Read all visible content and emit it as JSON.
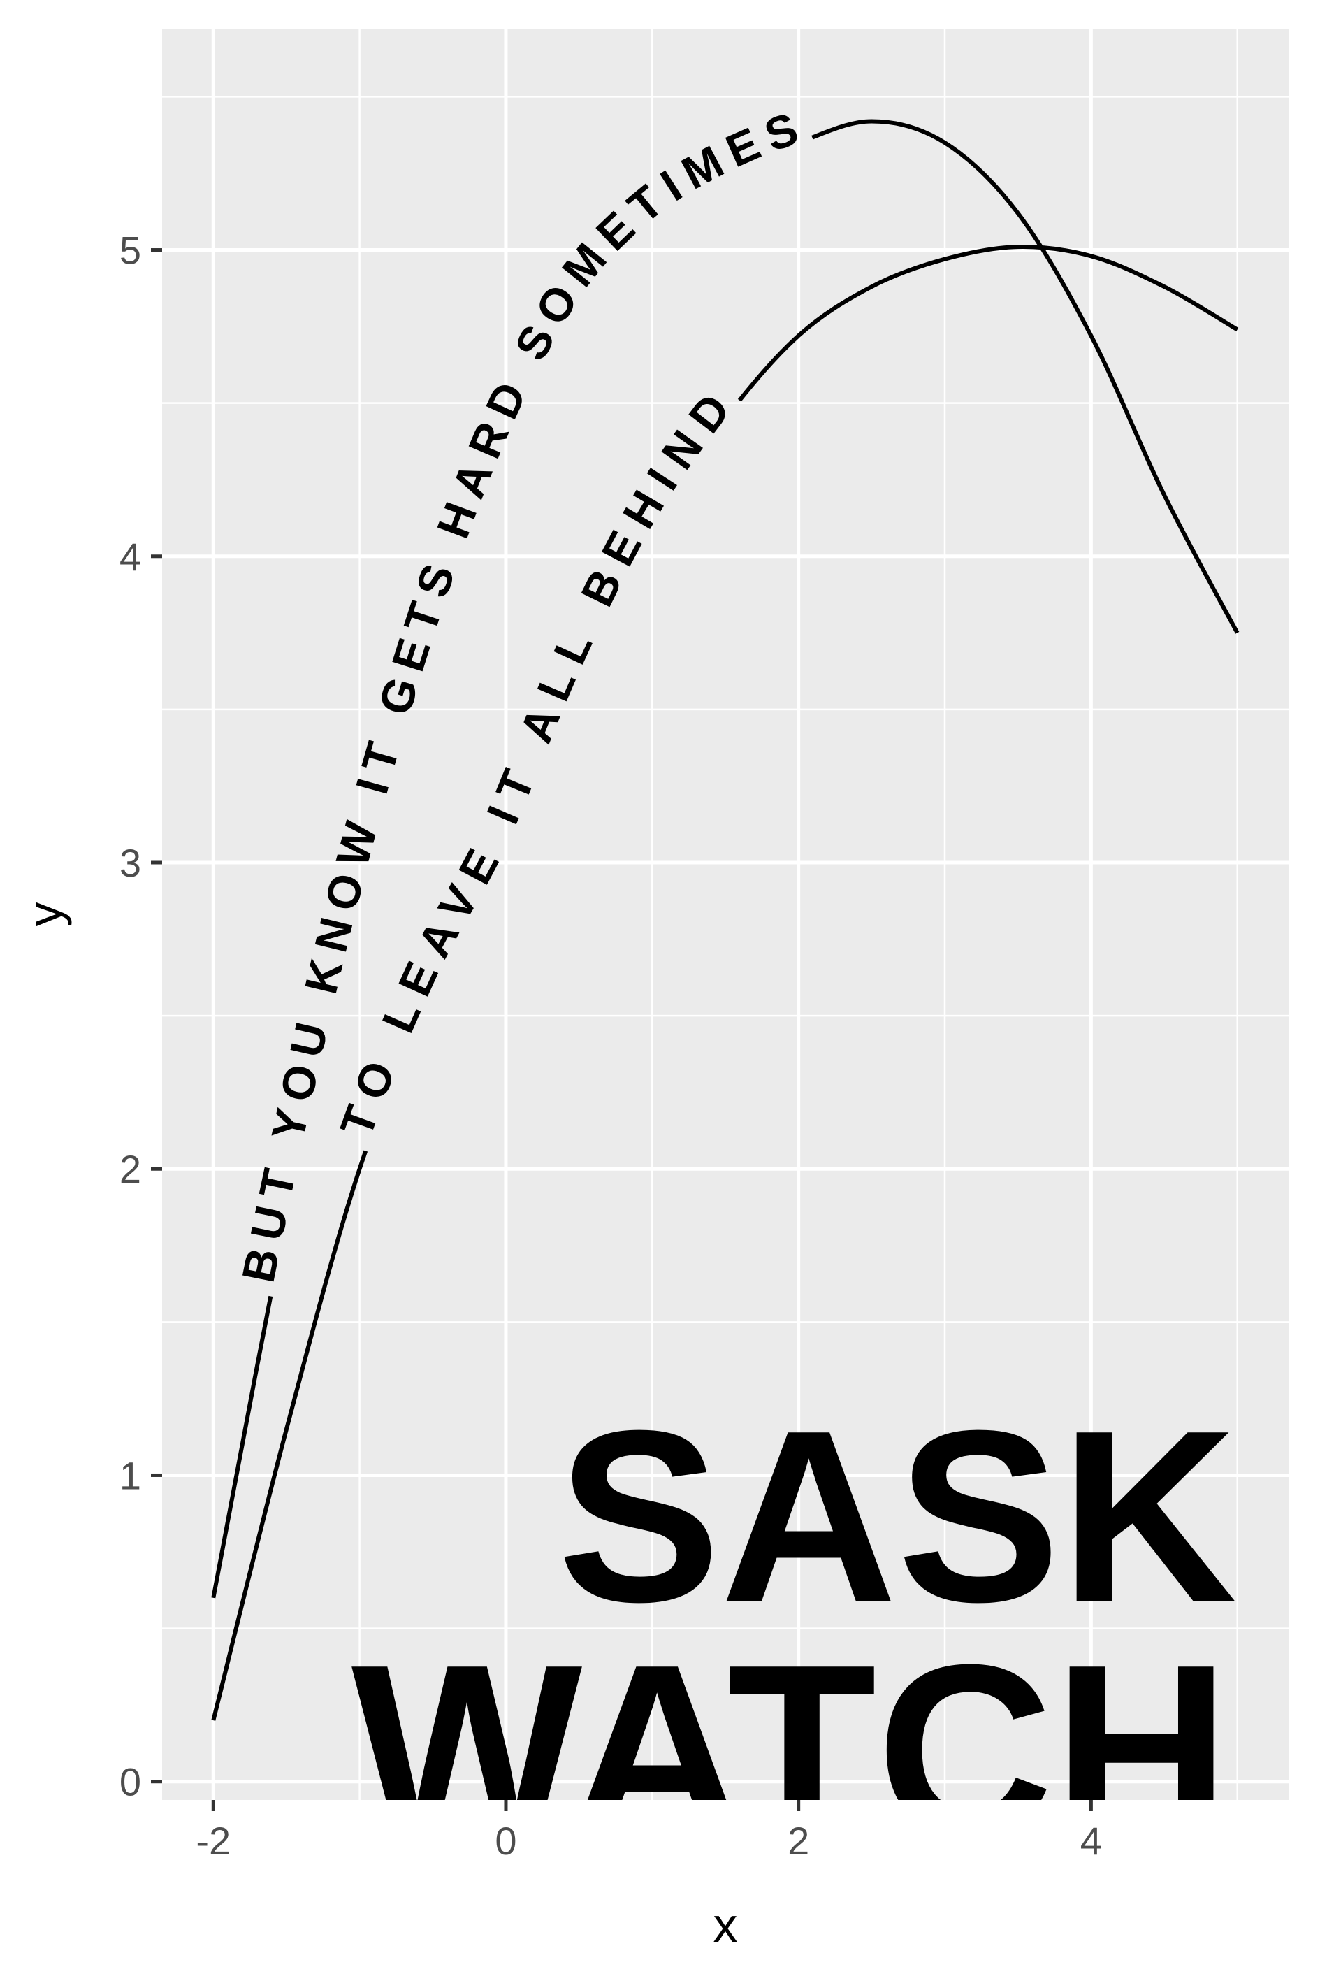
{
  "chart_data": {
    "type": "line",
    "xlabel": "x",
    "ylabel": "y",
    "xlim": [
      -2.35,
      5.35
    ],
    "ylim": [
      -0.06,
      5.72
    ],
    "x_ticks": [
      -2,
      0,
      2,
      4
    ],
    "x_tick_labels": [
      "-2",
      "0",
      "2",
      "4"
    ],
    "y_ticks": [
      0,
      1,
      2,
      3,
      4,
      5
    ],
    "y_tick_labels": [
      "0",
      "1",
      "2",
      "3",
      "4",
      "5"
    ],
    "grid": true,
    "panel_background": "#ebebeb",
    "grid_color": "#ffffff",
    "line_color": "#000000",
    "series": [
      {
        "label": "BUT YOU KNOW IT GETS HARD SOMETIMES",
        "x": [
          -2,
          -1.5,
          -1,
          -0.5,
          0,
          0.5,
          1,
          1.5,
          2,
          2.5,
          3,
          3.5,
          4,
          4.5,
          5
        ],
        "y": [
          0.6,
          1.84,
          2.89,
          3.73,
          4.38,
          4.84,
          5.1,
          5.25,
          5.35,
          5.42,
          5.35,
          5.12,
          4.72,
          4.2,
          3.75
        ]
      },
      {
        "label": "TO LEAVE IT ALL BEHIND",
        "x": [
          -2,
          -1.5,
          -1,
          -0.5,
          0,
          0.5,
          1,
          1.5,
          2,
          2.5,
          3,
          3.5,
          4,
          4.5,
          5
        ],
        "y": [
          0.2,
          1.15,
          2.0,
          2.6,
          3.05,
          3.62,
          4.1,
          4.45,
          4.72,
          4.88,
          4.97,
          5.01,
          4.98,
          4.88,
          4.74
        ]
      }
    ],
    "overlay_text": [
      "SASK",
      "WATCH"
    ]
  }
}
